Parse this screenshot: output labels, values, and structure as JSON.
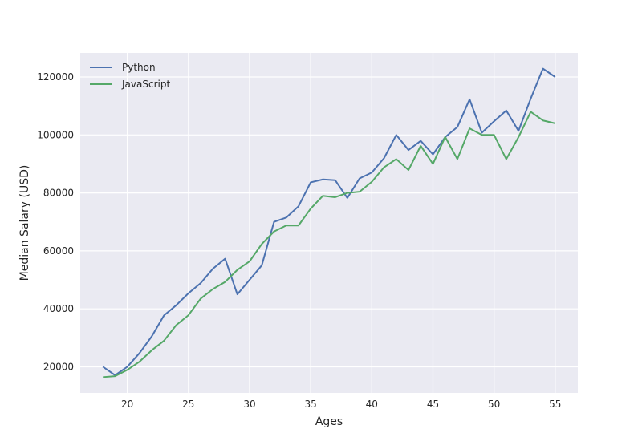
{
  "chart_data": {
    "type": "line",
    "title": "",
    "xlabel": "Ages",
    "ylabel": "Median Salary (USD)",
    "xlim": [
      16.15,
      56.85
    ],
    "ylim": [
      11000,
      128300
    ],
    "xticks": [
      20,
      25,
      30,
      35,
      40,
      45,
      50,
      55
    ],
    "yticks": [
      20000,
      40000,
      60000,
      80000,
      100000,
      120000
    ],
    "grid": true,
    "legend_position": "top-left",
    "x": [
      18,
      19,
      20,
      21,
      22,
      23,
      24,
      25,
      26,
      27,
      28,
      29,
      30,
      31,
      32,
      33,
      34,
      35,
      36,
      37,
      38,
      39,
      40,
      41,
      42,
      43,
      44,
      45,
      46,
      47,
      48,
      49,
      50,
      51,
      52,
      53,
      54,
      55
    ],
    "series": [
      {
        "name": "Python",
        "color": "#4c72b0",
        "values": [
          20046,
          17100,
          20000,
          24744,
          30500,
          37732,
          41247,
          45372,
          48876,
          53850,
          57287,
          45000,
          50000,
          55000,
          70000,
          71496,
          75370,
          83640,
          84666,
          84392,
          78254,
          85000,
          87038,
          91991,
          100000,
          94796,
          97962,
          93302,
          99240,
          102736,
          112285,
          100771,
          104708,
          108423,
          101407,
          112542,
          122870,
          120000
        ]
      },
      {
        "name": "JavaScript",
        "color": "#55a868",
        "values": [
          16446,
          16791,
          18942,
          21780,
          25704,
          29000,
          34372,
          37810,
          43515,
          46823,
          49293,
          53437,
          56373,
          62375,
          66674,
          68745,
          68746,
          74583,
          79000,
          78508,
          79996,
          80403,
          83820,
          88833,
          91660,
          87892,
          96243,
          90000,
          99313,
          91660,
          102264,
          100000,
          100000,
          91660,
          99240,
          108000,
          105000,
          104000
        ]
      }
    ]
  }
}
